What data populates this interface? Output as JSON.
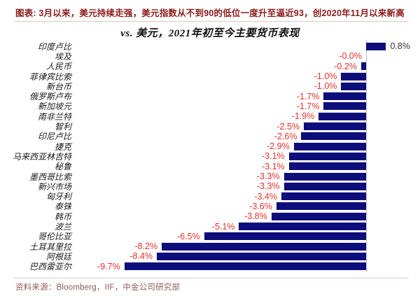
{
  "header": {
    "title": "图表: 3月以来，美元持续走强，美元指数从不到90的低位一度升至逼近93，创2020年11月以来新高"
  },
  "chart_data": {
    "type": "bar",
    "orientation": "horizontal",
    "title": "vs. 美元，2021年初至今主要货币表现",
    "unit": "%",
    "xlim": [
      -10.5,
      1.5
    ],
    "grid": false,
    "legend": "none",
    "categories": [
      "印度卢比",
      "埃及",
      "人民币",
      "菲律宾比索",
      "新台币",
      "俄罗斯卢布",
      "新加坡元",
      "南非兰特",
      "智利",
      "印尼卢比",
      "捷克",
      "马来西亚林吉特",
      "秘鲁",
      "墨西哥比索",
      "新兴市场",
      "匈牙利",
      "泰铢",
      "韩币",
      "波兰",
      "哥伦比亚",
      "土耳其里拉",
      "阿根廷",
      "巴西雷亚尔"
    ],
    "values": [
      0.8,
      -0.0,
      -0.2,
      -1.0,
      -1.0,
      -1.7,
      -1.7,
      -1.9,
      -2.5,
      -2.6,
      -2.9,
      -3.1,
      -3.1,
      -3.3,
      -3.3,
      -3.4,
      -3.6,
      -3.8,
      -5.1,
      -6.5,
      -8.2,
      -8.4,
      -9.7
    ],
    "value_labels": [
      "0.8%",
      "-0.0%",
      "-0.2%",
      "-1.0%",
      "-1.0%",
      "-1.7%",
      "-1.7%",
      "-1.9%",
      "-2.5%",
      "-2.6%",
      "-2.9%",
      "-3.1%",
      "-3.1%",
      "-3.3%",
      "-3.3%",
      "-3.4%",
      "-3.6%",
      "-3.8%",
      "-5.1%",
      "-6.5%",
      "-8.2%",
      "-8.4%",
      "-9.7%"
    ]
  },
  "colors": {
    "bar": "#0d0d7b",
    "negative_label": "#e8312d",
    "positive_label": "#333333",
    "header_text": "#8b1a1a",
    "source_text": "#8f5b5b",
    "zero_line": "#c4c4c4"
  },
  "source": {
    "text": "资料来源：Bloomberg，IIF，中金公司研究部"
  }
}
